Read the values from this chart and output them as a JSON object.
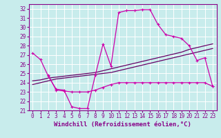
{
  "xlabel": "Windchill (Refroidissement éolien,°C)",
  "bg_color": "#c8ecec",
  "grid_color": "#b0d0d0",
  "line_color_magenta": "#cc00aa",
  "line_color_purple": "#660066",
  "ylim": [
    21,
    32.5
  ],
  "xlim": [
    -0.5,
    23.5
  ],
  "yticks": [
    21,
    22,
    23,
    24,
    25,
    26,
    27,
    28,
    29,
    30,
    31,
    32
  ],
  "xticks": [
    0,
    1,
    2,
    3,
    4,
    5,
    6,
    7,
    8,
    9,
    10,
    11,
    12,
    13,
    14,
    15,
    16,
    17,
    18,
    19,
    20,
    21,
    22,
    23
  ],
  "line1_x": [
    0,
    1,
    2,
    3,
    4,
    5,
    6,
    7,
    8,
    9,
    10,
    11,
    12,
    13,
    14,
    15,
    16,
    17,
    18,
    19,
    20,
    21,
    22,
    23
  ],
  "line1_y": [
    27.2,
    26.5,
    24.7,
    23.3,
    23.2,
    21.4,
    21.2,
    21.2,
    24.8,
    28.2,
    25.8,
    31.6,
    31.8,
    31.8,
    31.9,
    31.9,
    30.3,
    29.2,
    29.0,
    28.8,
    28.0,
    26.4,
    26.7,
    23.6
  ],
  "line2_x": [
    2,
    3,
    4,
    5,
    6,
    7,
    8,
    9,
    10,
    11,
    12,
    13,
    14,
    15,
    16,
    17,
    18,
    19,
    20,
    21,
    22,
    23
  ],
  "line2_y": [
    24.8,
    23.2,
    23.1,
    23.0,
    23.0,
    23.0,
    23.2,
    23.5,
    23.8,
    24.0,
    24.0,
    24.0,
    24.0,
    24.0,
    24.0,
    24.0,
    24.0,
    24.0,
    24.0,
    24.0,
    24.0,
    23.6
  ],
  "line3_x": [
    0,
    1,
    2,
    3,
    4,
    5,
    6,
    7,
    8,
    9,
    10,
    11,
    12,
    13,
    14,
    15,
    16,
    17,
    18,
    19,
    20,
    21,
    22,
    23
  ],
  "line3_y": [
    24.2,
    24.3,
    24.5,
    24.6,
    24.7,
    24.8,
    24.9,
    25.0,
    25.1,
    25.3,
    25.5,
    25.7,
    25.9,
    26.1,
    26.3,
    26.5,
    26.7,
    26.9,
    27.1,
    27.3,
    27.6,
    27.8,
    28.0,
    28.2
  ],
  "line4_x": [
    0,
    1,
    2,
    3,
    4,
    5,
    6,
    7,
    8,
    9,
    10,
    11,
    12,
    13,
    14,
    15,
    16,
    17,
    18,
    19,
    20,
    21,
    22,
    23
  ],
  "line4_y": [
    23.8,
    24.0,
    24.2,
    24.4,
    24.5,
    24.6,
    24.7,
    24.8,
    24.9,
    25.0,
    25.1,
    25.3,
    25.5,
    25.7,
    25.9,
    26.1,
    26.3,
    26.5,
    26.7,
    26.9,
    27.1,
    27.3,
    27.5,
    27.7
  ],
  "tick_fontsize": 5.5,
  "xlabel_fontsize": 6.5
}
